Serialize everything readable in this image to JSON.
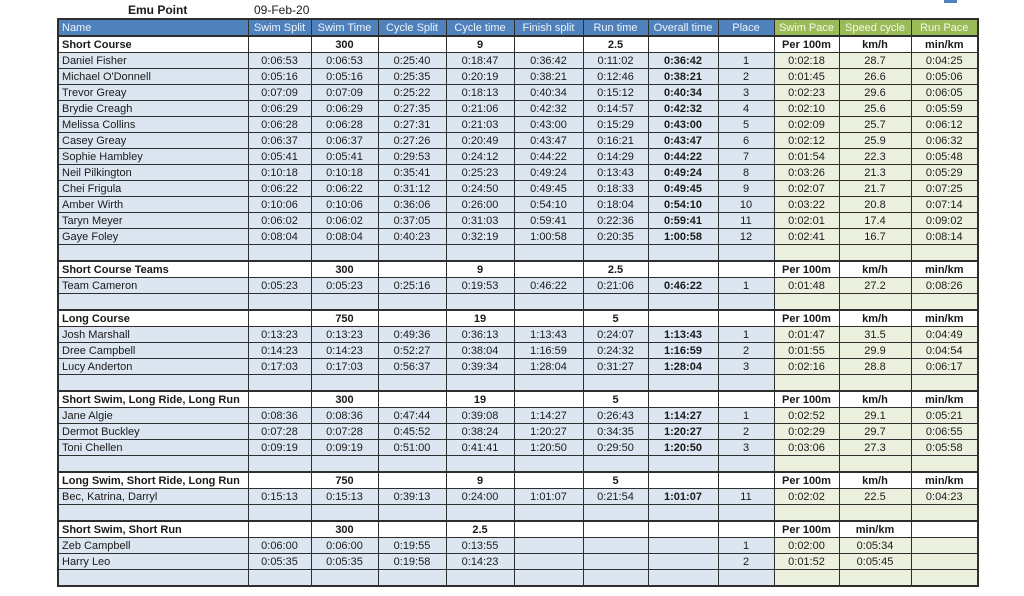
{
  "title": "Emu Point",
  "date": "09-Feb-20",
  "colors": {
    "header_blue": "#4f81bd",
    "header_green": "#9bbb59",
    "row_blue": "#dce6f1",
    "row_green": "#ebf1de"
  },
  "columns": [
    "Name",
    "Swim Split",
    "Swim Time",
    "Cycle Split",
    "Cycle time",
    "Finish split",
    "Run time",
    "Overall time",
    "Place",
    "Swim Pace",
    "Speed cycle",
    "Run Pace"
  ],
  "sections": [
    {
      "header": [
        "Short Course",
        "",
        "300",
        "",
        "9",
        "",
        "2.5",
        "",
        "",
        "Per 100m",
        "km/h",
        "min/km"
      ],
      "rows": [
        [
          "Daniel Fisher",
          "0:06:53",
          "0:06:53",
          "0:25:40",
          "0:18:47",
          "0:36:42",
          "0:11:02",
          "0:36:42",
          "1",
          "0:02:18",
          "28.7",
          "0:04:25"
        ],
        [
          "Michael O'Donnell",
          "0:05:16",
          "0:05:16",
          "0:25:35",
          "0:20:19",
          "0:38:21",
          "0:12:46",
          "0:38:21",
          "2",
          "0:01:45",
          "26.6",
          "0:05:06"
        ],
        [
          "Trevor Greay",
          "0:07:09",
          "0:07:09",
          "0:25:22",
          "0:18:13",
          "0:40:34",
          "0:15:12",
          "0:40:34",
          "3",
          "0:02:23",
          "29.6",
          "0:06:05"
        ],
        [
          "Brydie Creagh",
          "0:06:29",
          "0:06:29",
          "0:27:35",
          "0:21:06",
          "0:42:32",
          "0:14:57",
          "0:42:32",
          "4",
          "0:02:10",
          "25.6",
          "0:05:59"
        ],
        [
          "Melissa Collins",
          "0:06:28",
          "0:06:28",
          "0:27:31",
          "0:21:03",
          "0:43:00",
          "0:15:29",
          "0:43:00",
          "5",
          "0:02:09",
          "25.7",
          "0:06:12"
        ],
        [
          "Casey Greay",
          "0:06:37",
          "0:06:37",
          "0:27:26",
          "0:20:49",
          "0:43:47",
          "0:16:21",
          "0:43:47",
          "6",
          "0:02:12",
          "25.9",
          "0:06:32"
        ],
        [
          "Sophie Hambley",
          "0:05:41",
          "0:05:41",
          "0:29:53",
          "0:24:12",
          "0:44:22",
          "0:14:29",
          "0:44:22",
          "7",
          "0:01:54",
          "22.3",
          "0:05:48"
        ],
        [
          "Neil Pilkington",
          "0:10:18",
          "0:10:18",
          "0:35:41",
          "0:25:23",
          "0:49:24",
          "0:13:43",
          "0:49:24",
          "8",
          "0:03:26",
          "21.3",
          "0:05:29"
        ],
        [
          "Chei Frigula",
          "0:06:22",
          "0:06:22",
          "0:31:12",
          "0:24:50",
          "0:49:45",
          "0:18:33",
          "0:49:45",
          "9",
          "0:02:07",
          "21.7",
          "0:07:25"
        ],
        [
          "Amber Wirth",
          "0:10:06",
          "0:10:06",
          "0:36:06",
          "0:26:00",
          "0:54:10",
          "0:18:04",
          "0:54:10",
          "10",
          "0:03:22",
          "20.8",
          "0:07:14"
        ],
        [
          "Taryn Meyer",
          "0:06:02",
          "0:06:02",
          "0:37:05",
          "0:31:03",
          "0:59:41",
          "0:22:36",
          "0:59:41",
          "11",
          "0:02:01",
          "17.4",
          "0:09:02"
        ],
        [
          "Gaye Foley",
          "0:08:04",
          "0:08:04",
          "0:40:23",
          "0:32:19",
          "1:00:58",
          "0:20:35",
          "1:00:58",
          "12",
          "0:02:41",
          "16.7",
          "0:08:14"
        ]
      ]
    },
    {
      "header": [
        "Short Course Teams",
        "",
        "300",
        "",
        "9",
        "",
        "2.5",
        "",
        "",
        "Per 100m",
        "km/h",
        "min/km"
      ],
      "rows": [
        [
          "Team Cameron",
          "0:05:23",
          "0:05:23",
          "0:25:16",
          "0:19:53",
          "0:46:22",
          "0:21:06",
          "0:46:22",
          "1",
          "0:01:48",
          "27.2",
          "0:08:26"
        ]
      ]
    },
    {
      "header": [
        "Long Course",
        "",
        "750",
        "",
        "19",
        "",
        "5",
        "",
        "",
        "Per 100m",
        "km/h",
        "min/km"
      ],
      "rows": [
        [
          "Josh Marshall",
          "0:13:23",
          "0:13:23",
          "0:49:36",
          "0:36:13",
          "1:13:43",
          "0:24:07",
          "1:13:43",
          "1",
          "0:01:47",
          "31.5",
          "0:04:49"
        ],
        [
          "Dree Campbell",
          "0:14:23",
          "0:14:23",
          "0:52:27",
          "0:38:04",
          "1:16:59",
          "0:24:32",
          "1:16:59",
          "2",
          "0:01:55",
          "29.9",
          "0:04:54"
        ],
        [
          "Lucy Anderton",
          "0:17:03",
          "0:17:03",
          "0:56:37",
          "0:39:34",
          "1:28:04",
          "0:31:27",
          "1:28:04",
          "3",
          "0:02:16",
          "28.8",
          "0:06:17"
        ]
      ]
    },
    {
      "header": [
        "Short Swim, Long Ride, Long Run",
        "",
        "300",
        "",
        "19",
        "",
        "5",
        "",
        "",
        "Per 100m",
        "km/h",
        "min/km"
      ],
      "rows": [
        [
          "Jane Algie",
          "0:08:36",
          "0:08:36",
          "0:47:44",
          "0:39:08",
          "1:14:27",
          "0:26:43",
          "1:14:27",
          "1",
          "0:02:52",
          "29.1",
          "0:05:21"
        ],
        [
          "Dermot Buckley",
          "0:07:28",
          "0:07:28",
          "0:45:52",
          "0:38:24",
          "1:20:27",
          "0:34:35",
          "1:20:27",
          "2",
          "0:02:29",
          "29.7",
          "0:06:55"
        ],
        [
          "Toni Chellen",
          "0:09:19",
          "0:09:19",
          "0:51:00",
          "0:41:41",
          "1:20:50",
          "0:29:50",
          "1:20:50",
          "3",
          "0:03:06",
          "27.3",
          "0:05:58"
        ]
      ]
    },
    {
      "header": [
        "Long Swim, Short Ride, Long Run",
        "",
        "750",
        "",
        "9",
        "",
        "5",
        "",
        "",
        "Per 100m",
        "km/h",
        "min/km"
      ],
      "rows": [
        [
          "Bec, Katrina, Darryl",
          "0:15:13",
          "0:15:13",
          "0:39:13",
          "0:24:00",
          "1:01:07",
          "0:21:54",
          "1:01:07",
          "11",
          "0:02:02",
          "22.5",
          "0:04:23"
        ]
      ]
    },
    {
      "header": [
        "Short Swim, Short Run",
        "",
        "300",
        "",
        "2.5",
        "",
        "",
        "",
        "",
        "Per 100m",
        "min/km",
        ""
      ],
      "rows": [
        [
          "Zeb Campbell",
          "0:06:00",
          "0:06:00",
          "0:19:55",
          "0:13:55",
          "",
          "",
          "",
          "1",
          "0:02:00",
          "0:05:34",
          ""
        ],
        [
          "Harry Leo",
          "0:05:35",
          "0:05:35",
          "0:19:58",
          "0:14:23",
          "",
          "",
          "",
          "2",
          "0:01:52",
          "0:05:45",
          ""
        ]
      ]
    }
  ]
}
